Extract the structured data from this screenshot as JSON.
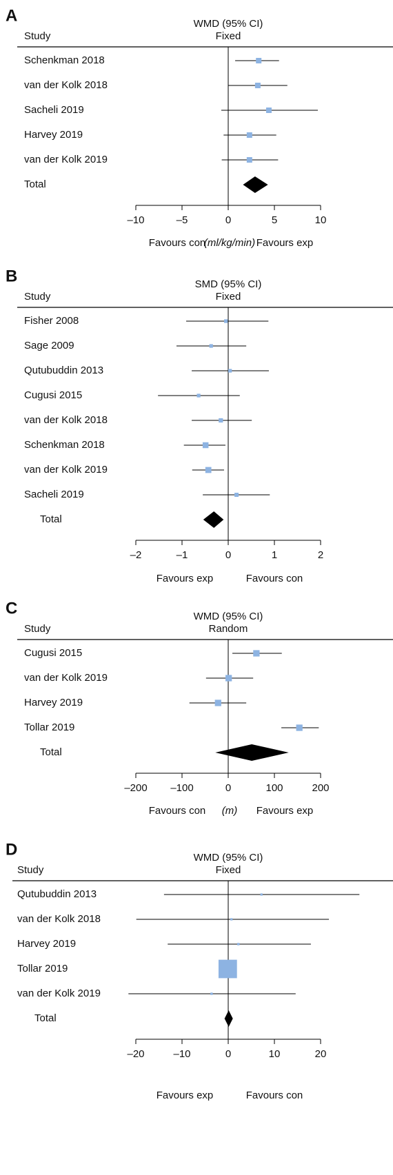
{
  "chart_data": [
    {
      "type": "forest",
      "panel_label": "A",
      "title": "WMD (95% CI)",
      "subtitle": "Fixed",
      "column_header": "Study",
      "categories": [
        "Schenkman 2018",
        "van der Kolk 2018",
        "Sacheli 2019",
        "Harvey 2019",
        "van der Kolk 2019"
      ],
      "values": [
        3.3,
        3.2,
        4.4,
        2.3,
        2.3
      ],
      "lower": [
        0.75,
        0,
        -0.75,
        -0.5,
        -0.7
      ],
      "upper": [
        5.5,
        6.4,
        9.7,
        5.2,
        5.4
      ],
      "weights": [
        20,
        20,
        20,
        20,
        20
      ],
      "total_label": "Total",
      "total": {
        "value": 2.9,
        "lower": 1.6,
        "upper": 4.3
      },
      "xlim": [
        -10,
        10
      ],
      "xticks": [
        {
          "value": -10,
          "label": "–10"
        },
        {
          "value": -5,
          "label": "–5"
        },
        0,
        5,
        10
      ],
      "x_label_left": "Favours con",
      "x_unit": "(ml/kg/min)",
      "x_label_right": "Favours exp",
      "color": "#8db3e2",
      "total_color": "#000000"
    },
    {
      "type": "forest",
      "panel_label": "B",
      "title": "SMD (95% CI)",
      "subtitle": "Fixed",
      "column_header": "Study",
      "categories": [
        "Fisher 2008",
        "Sage 2009",
        "Qutubuddin 2013",
        "Cugusi 2015",
        "van der Kolk 2018",
        "Schenkman 2018",
        "van der Kolk 2019",
        "Sacheli 2019"
      ],
      "values": [
        -0.05,
        -0.37,
        0.04,
        -0.64,
        -0.16,
        -0.49,
        -0.43,
        0.18
      ],
      "lower": [
        -0.91,
        -1.12,
        -0.79,
        -1.52,
        -0.79,
        -0.96,
        -0.78,
        -0.55
      ],
      "upper": [
        0.87,
        0.39,
        0.88,
        0.25,
        0.51,
        -0.06,
        -0.09,
        0.9
      ],
      "weights": [
        9,
        9,
        9,
        9,
        13,
        22,
        23,
        12
      ],
      "total_label": "Total",
      "total": {
        "value": -0.31,
        "lower": -0.54,
        "upper": -0.1
      },
      "xlim": [
        -2,
        2
      ],
      "xticks": [
        {
          "value": -2,
          "label": "–2"
        },
        {
          "value": -1,
          "label": "–1"
        },
        0,
        1,
        2
      ],
      "x_label_left": "Favours exp",
      "x_label_right": "Favours con",
      "color": "#8db3e2",
      "total_color": "#000000"
    },
    {
      "type": "forest",
      "panel_label": "C",
      "title": "WMD (95% CI)",
      "subtitle": "Random",
      "column_header": "Study",
      "categories": [
        "Cugusi 2015",
        "van der Kolk 2019",
        "Harvey 2019",
        "Tollar 2019"
      ],
      "values": [
        61,
        1,
        -22,
        154
      ],
      "lower": [
        9,
        -48,
        -84,
        115
      ],
      "upper": [
        116,
        54,
        39,
        196
      ],
      "weights": [
        25,
        25,
        25,
        25
      ],
      "total_label": "Total",
      "total": {
        "value": 51,
        "lower": -28,
        "upper": 131
      },
      "xlim": [
        -200,
        200
      ],
      "xticks": [
        {
          "value": -200,
          "label": "–200"
        },
        {
          "value": -100,
          "label": "–100"
        },
        0,
        100,
        200
      ],
      "x_label_left": "Favours con",
      "x_unit": "(m)",
      "x_label_right": "Favours exp",
      "color": "#8db3e2",
      "total_color": "#000000"
    },
    {
      "type": "forest",
      "panel_label": "D",
      "title": "WMD (95% CI)",
      "subtitle": "Fixed",
      "column_header": "Study",
      "categories": [
        "Qutubuddin 2013",
        "van der Kolk 2018",
        "Harvey 2019",
        "Tollar 2019",
        "van der Kolk 2019"
      ],
      "values": [
        7.2,
        0.7,
        2.2,
        -0.1,
        -3.6
      ],
      "lower": [
        -13.9,
        -19.9,
        -13.1,
        -1,
        -21.6
      ],
      "upper": [
        28.4,
        21.8,
        17.9,
        0.8,
        14.6
      ],
      "weights": [
        1,
        1,
        1.5,
        95,
        1.5
      ],
      "total_label": "Total",
      "total": {
        "value": 0.1,
        "lower": -0.8,
        "upper": 1
      },
      "xlim": [
        -20,
        20
      ],
      "xticks": [
        {
          "value": -20,
          "label": "–20"
        },
        {
          "value": -10,
          "label": "–10"
        },
        0,
        10,
        20
      ],
      "x_label_left": "Favours exp",
      "x_label_right": "Favours con",
      "color": "#8db3e2",
      "total_color": "#000000"
    }
  ]
}
